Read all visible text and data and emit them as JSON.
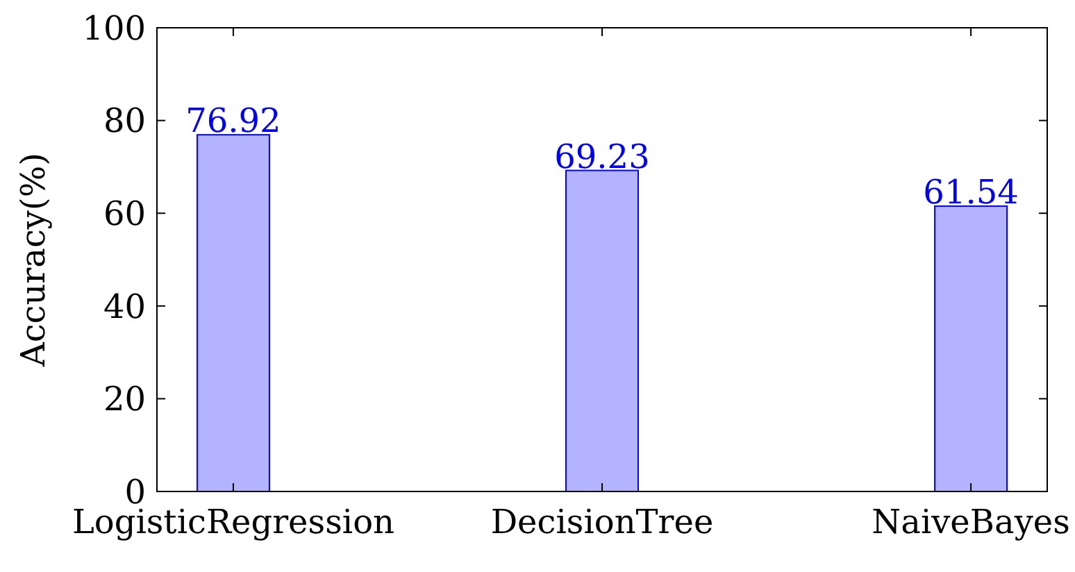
{
  "chart_data": {
    "type": "bar",
    "ylabel": "Accuracy(%)",
    "categories": [
      "LogisticRegression",
      "DecisionTree",
      "NaiveBayes"
    ],
    "values": [
      76.92,
      69.23,
      61.54
    ],
    "color": "#b3b3ff",
    "ylim": [
      0,
      100
    ],
    "yticks": [
      0,
      20,
      40,
      60,
      80,
      100
    ],
    "data_labels": true
  }
}
